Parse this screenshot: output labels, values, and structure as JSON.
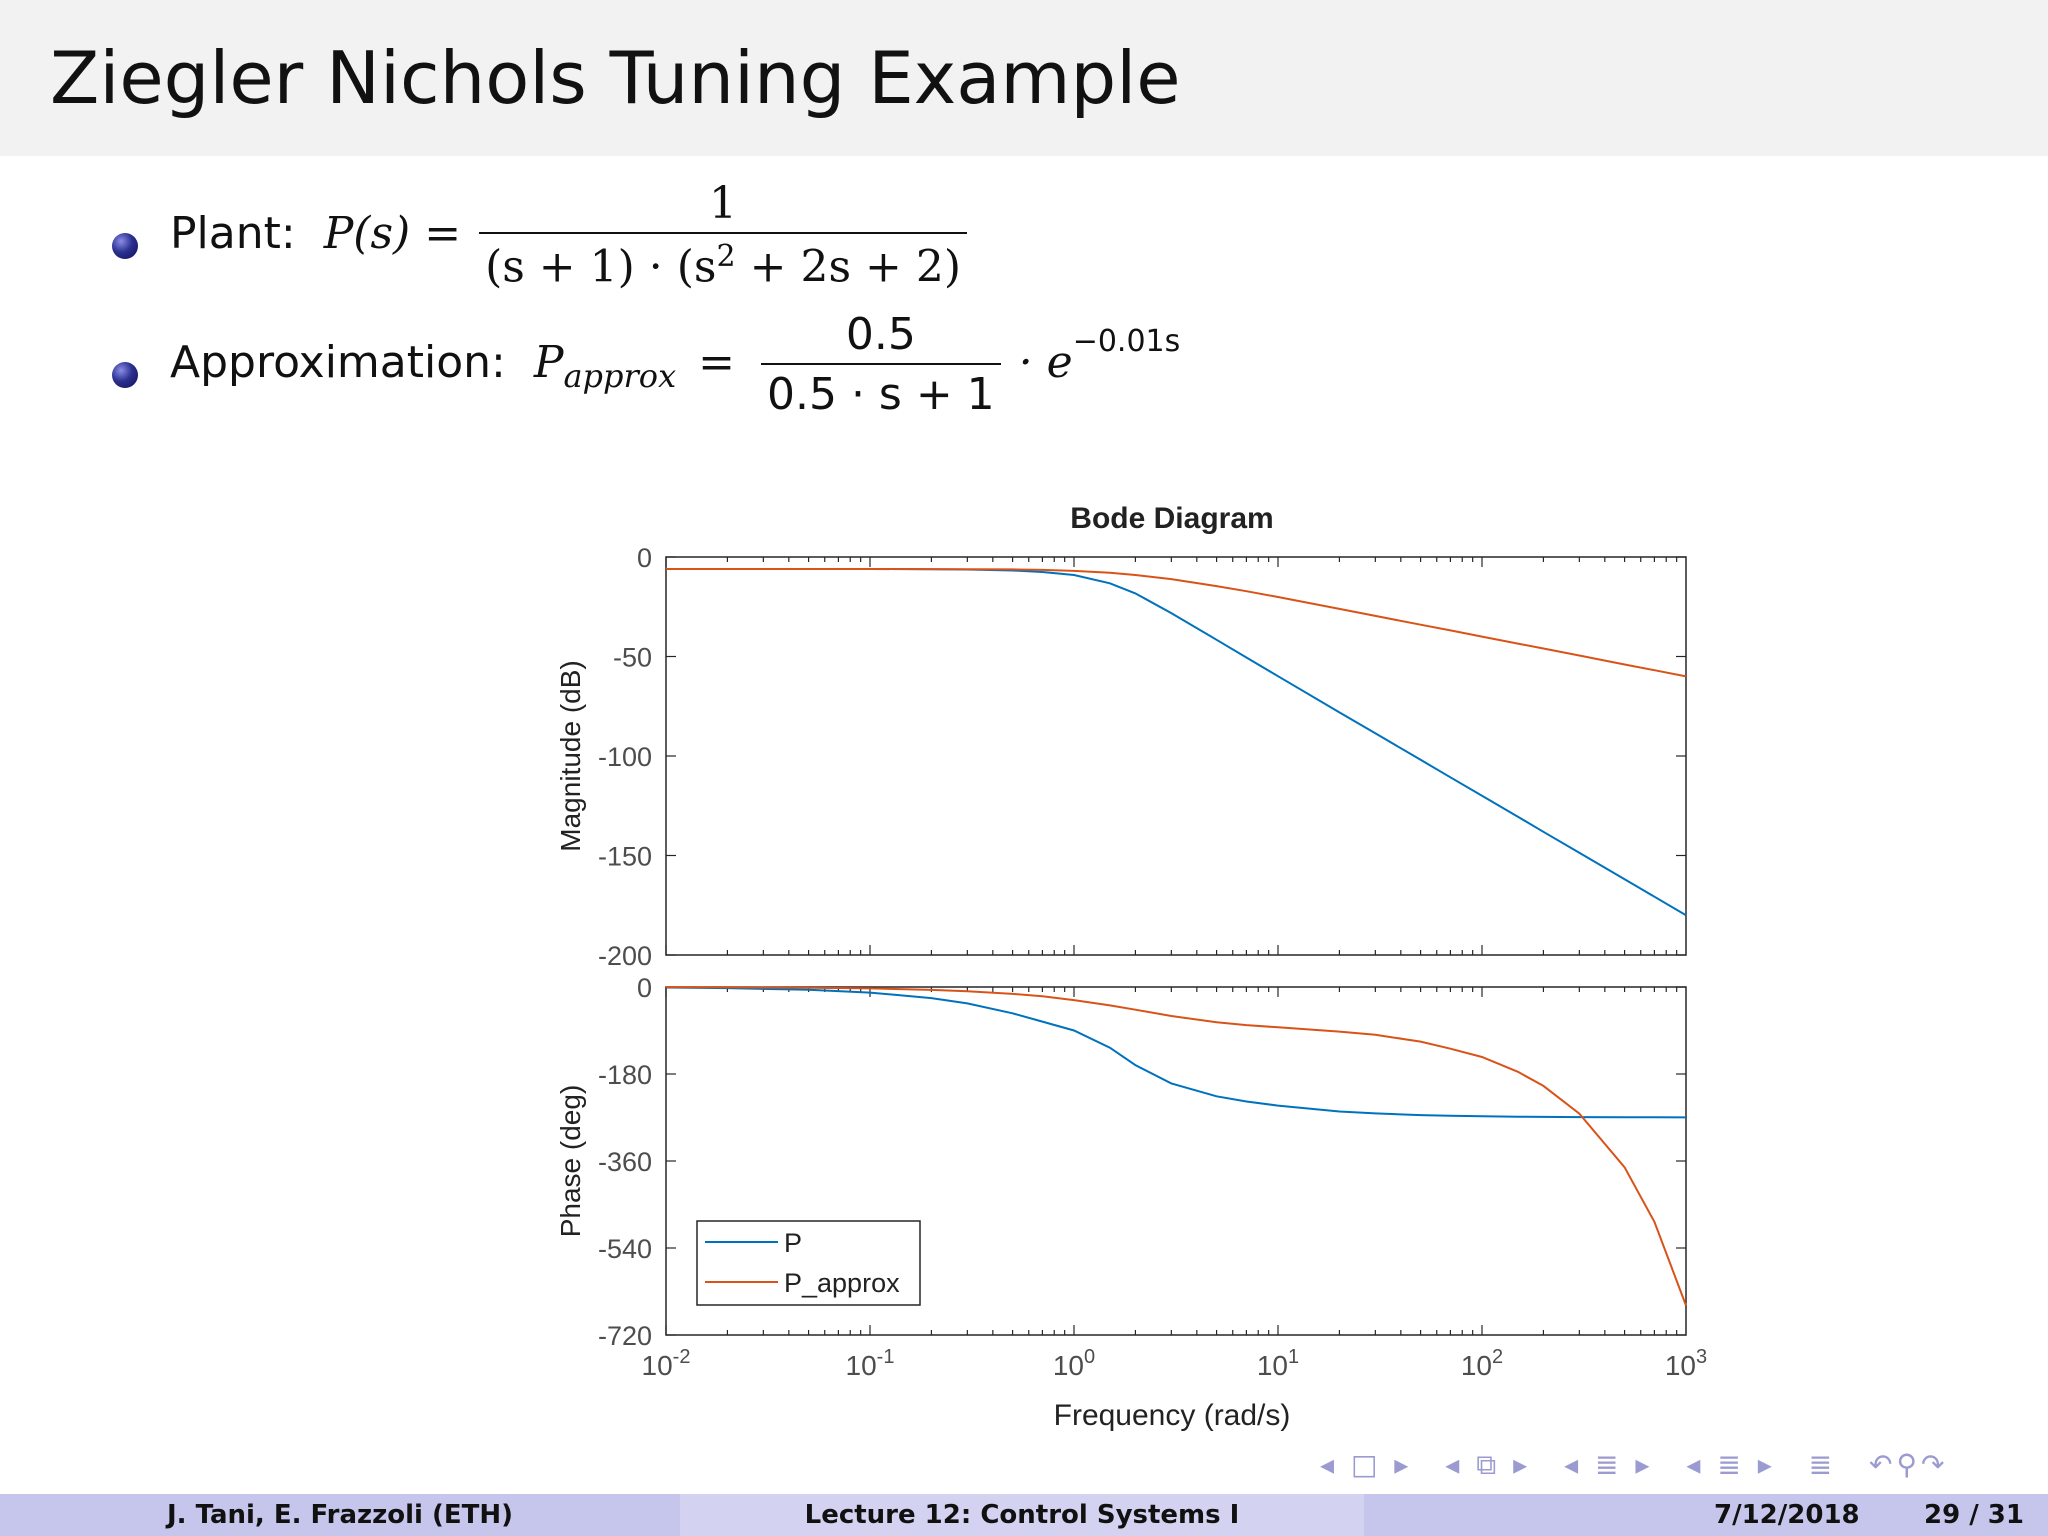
{
  "frame": {
    "title": "Ziegler Nichols Tuning Example"
  },
  "bullets": {
    "plant_label": "Plant:",
    "plant_lhs": "P(s) =",
    "plant_num": "1",
    "plant_den_a": "(s + 1) · (s",
    "plant_den_sup": "2",
    "plant_den_b": " + 2s + 2)",
    "approx_label": "Approximation:",
    "approx_lhs_P": "P",
    "approx_lhs_sub": "approx",
    "approx_eq": "=",
    "approx_num": "0.5",
    "approx_den": "0.5 · s + 1",
    "approx_times": "· e",
    "approx_exp": "−0.01s"
  },
  "chart_data": {
    "type": "line",
    "title": "Bode Diagram",
    "xlabel": "Frequency  (rad/s)",
    "xscale": "log",
    "xlim": [
      0.01,
      1000
    ],
    "x_ticks": [
      {
        "base": "10",
        "exp": "-2"
      },
      {
        "base": "10",
        "exp": "-1"
      },
      {
        "base": "10",
        "exp": "0"
      },
      {
        "base": "10",
        "exp": "1"
      },
      {
        "base": "10",
        "exp": "2"
      },
      {
        "base": "10",
        "exp": "3"
      }
    ],
    "x": [
      0.01,
      0.02,
      0.05,
      0.1,
      0.2,
      0.3,
      0.5,
      0.7,
      1,
      1.5,
      2,
      3,
      5,
      7,
      10,
      20,
      30,
      50,
      70,
      100,
      150,
      200,
      300,
      500,
      700,
      1000
    ],
    "panels": [
      {
        "ylabel": "Magnitude (dB)",
        "ylim": [
          -200,
          0
        ],
        "yticks": [
          "0",
          "-50",
          "-100",
          "-150",
          "-200"
        ],
        "yvals": [
          0,
          -50,
          -100,
          -150,
          -200
        ],
        "series": [
          {
            "values": [
              -6.02,
              -6.02,
              -6.03,
              -6.05,
              -6.15,
              -6.3,
              -6.78,
              -7.54,
              -9.03,
              -13.2,
              -18.3,
              -28.2,
              -41.6,
              -50.5,
              -59.9,
              -78.1,
              -88.6,
              -101.9,
              -110.7,
              -120.0,
              -130.5,
              -138.1,
              -148.6,
              -161.9,
              -170.7,
              -180.0
            ]
          },
          {
            "values": [
              -6.02,
              -6.02,
              -6.02,
              -6.03,
              -6.06,
              -6.11,
              -6.25,
              -6.46,
              -6.99,
              -7.96,
              -9.03,
              -11.1,
              -14.6,
              -17.2,
              -20.1,
              -26.1,
              -29.6,
              -34.0,
              -36.9,
              -40.0,
              -43.5,
              -46.0,
              -49.5,
              -54.0,
              -56.9,
              -60.0
            ]
          }
        ]
      },
      {
        "ylabel": "Phase (deg)",
        "ylim": [
          -720,
          0
        ],
        "yticks": [
          "0",
          "-180",
          "-360",
          "-540",
          "-720"
        ],
        "yvals": [
          0,
          -180,
          -360,
          -540,
          -720
        ],
        "series": [
          {
            "values": [
              -1.1,
              -2.3,
              -5.7,
              -11.5,
              -22.9,
              -34.0,
              -54.5,
              -71.5,
              -90.0,
              -125.5,
              -161.6,
              -199.4,
              -226.1,
              -237.0,
              -245.4,
              -257.5,
              -261.6,
              -265.0,
              -266.4,
              -267.5,
              -268.3,
              -268.8,
              -269.2,
              -269.5,
              -269.6,
              -269.7
            ]
          },
          {
            "values": [
              -0.3,
              -0.6,
              -1.5,
              -3.0,
              -5.9,
              -8.7,
              -14.2,
              -19.3,
              -27.1,
              -38.0,
              -46.9,
              -60.1,
              -73.0,
              -78.8,
              -83.4,
              -92.2,
              -98.8,
              -112.9,
              -127.7,
              -144.9,
              -175.5,
              -204.6,
              -262.0,
              -373.0,
              -485.8,
              -658.9
            ]
          }
        ]
      }
    ],
    "legend": {
      "placement": "bottom-left of phase panel",
      "entries": [
        "P",
        "P_approx"
      ]
    },
    "colors": [
      "#0072BD",
      "#D95319"
    ]
  },
  "footer": {
    "authors": "J. Tani, E. Frazzoli  (ETH)",
    "lecture": "Lecture 12: Control Systems I",
    "date": "7/12/2018",
    "page": "29 / 31",
    "colors": [
      "#dcdcf2",
      "#e6e6f7",
      "#dcdcf2"
    ]
  }
}
